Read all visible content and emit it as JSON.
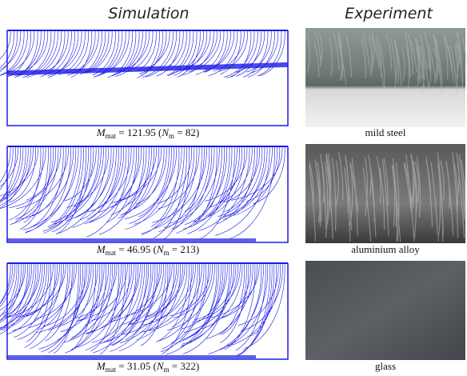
{
  "header": {
    "left": "Simulation",
    "right": "Experiment"
  },
  "rows": [
    {
      "caption": {
        "m": "M",
        "m_sub": "mat",
        "m_value": " = 121.95 (",
        "n": "N",
        "n_sub": "m",
        "n_value": " = 82)"
      },
      "material": "mild steel"
    },
    {
      "caption": {
        "m": "M",
        "m_sub": "mat",
        "m_value": " = 46.95 (",
        "n": "N",
        "n_sub": "m",
        "n_value": " = 213)"
      },
      "material": "aluminium alloy"
    },
    {
      "caption": {
        "m": "M",
        "m_sub": "mat",
        "m_value": " = 31.05 (",
        "n": "N",
        "n_sub": "m",
        "n_value": " = 322)"
      },
      "material": "glass"
    }
  ]
}
